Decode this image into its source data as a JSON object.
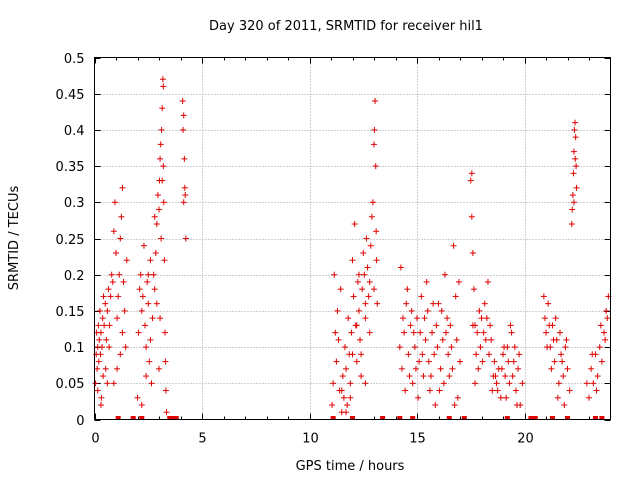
{
  "chart_data": {
    "type": "scatter",
    "title": "Day 320 of 2011, SRMTID for receiver hil1",
    "xlabel": "GPS time / hours",
    "ylabel": "SRMTID / TECUs",
    "xlim": [
      0,
      24
    ],
    "ylim": [
      0,
      0.5
    ],
    "grid": true,
    "marker": "+",
    "color": "#e00000",
    "x_ticks": [
      {
        "value": 0,
        "label": "0"
      },
      {
        "value": 5,
        "label": "5"
      },
      {
        "value": 10,
        "label": "10"
      },
      {
        "value": 15,
        "label": "15"
      },
      {
        "value": 20,
        "label": "20"
      }
    ],
    "y_ticks": [
      {
        "value": 0,
        "label": "0"
      },
      {
        "value": 0.05,
        "label": "0.05"
      },
      {
        "value": 0.1,
        "label": "0.1"
      },
      {
        "value": 0.15,
        "label": "0.15"
      },
      {
        "value": 0.2,
        "label": "0.2"
      },
      {
        "value": 0.25,
        "label": "0.25"
      },
      {
        "value": 0.3,
        "label": "0.3"
      },
      {
        "value": 0.35,
        "label": "0.35"
      },
      {
        "value": 0.4,
        "label": "0.4"
      },
      {
        "value": 0.45,
        "label": "0.45"
      },
      {
        "value": 0.5,
        "label": "0.5"
      }
    ],
    "points": [
      [
        0.05,
        0.05
      ],
      [
        0.08,
        0.09
      ],
      [
        0.1,
        0.12
      ],
      [
        0.12,
        0.07
      ],
      [
        0.15,
        0.1
      ],
      [
        0.18,
        0.13
      ],
      [
        0.2,
        0.08
      ],
      [
        0.22,
        0.11
      ],
      [
        0.25,
        0.15
      ],
      [
        0.28,
        0.09
      ],
      [
        0.3,
        0.12
      ],
      [
        0.32,
        0.03
      ],
      [
        0.35,
        0.1
      ],
      [
        0.38,
        0.14
      ],
      [
        0.4,
        0.06
      ],
      [
        0.45,
        0.13
      ],
      [
        0.5,
        0.16
      ],
      [
        0.55,
        0.11
      ],
      [
        0.6,
        0.15
      ],
      [
        0.65,
        0.18
      ],
      [
        0.7,
        0.13
      ],
      [
        0.75,
        0.17
      ],
      [
        0.8,
        0.2
      ],
      [
        0.85,
        0.19
      ],
      [
        0.9,
        0.26
      ],
      [
        0.95,
        0.3
      ],
      [
        1.0,
        0.23
      ],
      [
        1.05,
        0.14
      ],
      [
        1.1,
        0.17
      ],
      [
        1.15,
        0.2
      ],
      [
        1.2,
        0.25
      ],
      [
        1.25,
        0.28
      ],
      [
        1.3,
        0.32
      ],
      [
        1.35,
        0.19
      ],
      [
        1.4,
        0.15
      ],
      [
        1.45,
        0.1
      ],
      [
        1.5,
        0.22
      ],
      [
        0.6,
        0.05
      ],
      [
        0.15,
        0.04
      ],
      [
        0.3,
        0.02
      ],
      [
        0.42,
        0.17
      ],
      [
        0.52,
        0.07
      ],
      [
        0.68,
        0.1
      ],
      [
        0.9,
        0.05
      ],
      [
        1.05,
        0.07
      ],
      [
        1.2,
        0.09
      ],
      [
        1.3,
        0.12
      ],
      [
        2.0,
        0.03
      ],
      [
        2.05,
        0.12
      ],
      [
        2.1,
        0.18
      ],
      [
        2.15,
        0.2
      ],
      [
        2.2,
        0.15
      ],
      [
        2.25,
        0.17
      ],
      [
        2.3,
        0.24
      ],
      [
        2.35,
        0.13
      ],
      [
        2.4,
        0.1
      ],
      [
        2.45,
        0.19
      ],
      [
        2.5,
        0.16
      ],
      [
        2.55,
        0.08
      ],
      [
        2.6,
        0.11
      ],
      [
        2.65,
        0.05
      ],
      [
        2.7,
        0.14
      ],
      [
        2.75,
        0.2
      ],
      [
        2.8,
        0.18
      ],
      [
        2.85,
        0.23
      ],
      [
        2.9,
        0.27
      ],
      [
        2.95,
        0.31
      ],
      [
        3.0,
        0.29
      ],
      [
        3.02,
        0.33
      ],
      [
        3.05,
        0.36
      ],
      [
        3.08,
        0.38
      ],
      [
        3.1,
        0.25
      ],
      [
        3.12,
        0.4
      ],
      [
        3.15,
        0.43
      ],
      [
        3.18,
        0.47
      ],
      [
        3.2,
        0.35
      ],
      [
        3.22,
        0.3
      ],
      [
        3.25,
        0.22
      ],
      [
        3.28,
        0.12
      ],
      [
        3.3,
        0.08
      ],
      [
        3.32,
        0.04
      ],
      [
        3.35,
        0.01
      ],
      [
        2.2,
        0.02
      ],
      [
        2.4,
        0.06
      ],
      [
        2.5,
        0.2
      ],
      [
        2.6,
        0.22
      ],
      [
        2.8,
        0.28
      ],
      [
        2.9,
        0.16
      ],
      [
        3.0,
        0.07
      ],
      [
        3.05,
        0.14
      ],
      [
        3.15,
        0.33
      ],
      [
        3.2,
        0.46
      ],
      [
        4.1,
        0.44
      ],
      [
        4.12,
        0.4
      ],
      [
        4.15,
        0.42
      ],
      [
        4.18,
        0.36
      ],
      [
        4.2,
        0.32
      ],
      [
        4.22,
        0.31
      ],
      [
        4.25,
        0.25
      ],
      [
        4.15,
        0.3
      ],
      [
        11.05,
        0.02
      ],
      [
        11.1,
        0.05
      ],
      [
        11.15,
        0.2
      ],
      [
        11.2,
        0.12
      ],
      [
        11.25,
        0.08
      ],
      [
        11.3,
        0.15
      ],
      [
        11.35,
        0.11
      ],
      [
        11.4,
        0.04
      ],
      [
        11.45,
        0.18
      ],
      [
        11.5,
        0.01
      ],
      [
        11.55,
        0.06
      ],
      [
        11.6,
        0.03
      ],
      [
        11.65,
        0.1
      ],
      [
        11.7,
        0.07
      ],
      [
        11.75,
        0.02
      ],
      [
        11.8,
        0.14
      ],
      [
        11.85,
        0.09
      ],
      [
        11.9,
        0.05
      ],
      [
        11.95,
        0.12
      ],
      [
        12.0,
        0.22
      ],
      [
        12.05,
        0.17
      ],
      [
        12.1,
        0.27
      ],
      [
        12.15,
        0.13
      ],
      [
        12.2,
        0.08
      ],
      [
        12.25,
        0.19
      ],
      [
        12.3,
        0.15
      ],
      [
        12.35,
        0.11
      ],
      [
        12.4,
        0.06
      ],
      [
        12.45,
        0.18
      ],
      [
        12.5,
        0.23
      ],
      [
        12.55,
        0.2
      ],
      [
        12.6,
        0.14
      ],
      [
        12.65,
        0.25
      ],
      [
        12.7,
        0.21
      ],
      [
        12.75,
        0.17
      ],
      [
        12.8,
        0.19
      ],
      [
        12.85,
        0.24
      ],
      [
        12.9,
        0.28
      ],
      [
        12.95,
        0.3
      ],
      [
        13.0,
        0.38
      ],
      [
        13.02,
        0.4
      ],
      [
        13.05,
        0.44
      ],
      [
        13.08,
        0.35
      ],
      [
        13.1,
        0.26
      ],
      [
        13.12,
        0.22
      ],
      [
        13.15,
        0.16
      ],
      [
        11.5,
        0.04
      ],
      [
        11.7,
        0.01
      ],
      [
        11.9,
        0.03
      ],
      [
        12.0,
        0.09
      ],
      [
        12.2,
        0.13
      ],
      [
        12.4,
        0.09
      ],
      [
        12.6,
        0.05
      ],
      [
        12.8,
        0.12
      ],
      [
        13.0,
        0.18
      ],
      [
        12.3,
        0.2
      ],
      [
        12.6,
        0.16
      ],
      [
        14.2,
        0.1
      ],
      [
        14.3,
        0.07
      ],
      [
        14.4,
        0.12
      ],
      [
        14.5,
        0.16
      ],
      [
        14.6,
        0.09
      ],
      [
        14.7,
        0.13
      ],
      [
        14.8,
        0.05
      ],
      [
        14.9,
        0.1
      ],
      [
        15.0,
        0.14
      ],
      [
        15.1,
        0.08
      ],
      [
        15.2,
        0.17
      ],
      [
        15.3,
        0.06
      ],
      [
        15.4,
        0.11
      ],
      [
        15.5,
        0.15
      ],
      [
        15.6,
        0.04
      ],
      [
        15.7,
        0.12
      ],
      [
        15.8,
        0.09
      ],
      [
        15.9,
        0.13
      ],
      [
        16.0,
        0.16
      ],
      [
        16.1,
        0.07
      ],
      [
        16.2,
        0.11
      ],
      [
        16.3,
        0.2
      ],
      [
        16.4,
        0.14
      ],
      [
        16.5,
        0.06
      ],
      [
        16.6,
        0.1
      ],
      [
        16.7,
        0.24
      ],
      [
        16.8,
        0.17
      ],
      [
        16.9,
        0.03
      ],
      [
        17.0,
        0.08
      ],
      [
        14.25,
        0.21
      ],
      [
        14.35,
        0.14
      ],
      [
        14.45,
        0.04
      ],
      [
        14.55,
        0.18
      ],
      [
        14.65,
        0.06
      ],
      [
        14.75,
        0.15
      ],
      [
        14.85,
        0.12
      ],
      [
        14.95,
        0.07
      ],
      [
        15.05,
        0.03
      ],
      [
        15.15,
        0.12
      ],
      [
        15.25,
        0.09
      ],
      [
        15.35,
        0.14
      ],
      [
        15.45,
        0.19
      ],
      [
        15.55,
        0.08
      ],
      [
        15.65,
        0.06
      ],
      [
        15.75,
        0.16
      ],
      [
        15.85,
        0.02
      ],
      [
        15.95,
        0.1
      ],
      [
        16.05,
        0.04
      ],
      [
        16.15,
        0.15
      ],
      [
        16.25,
        0.05
      ],
      [
        16.35,
        0.12
      ],
      [
        16.45,
        0.09
      ],
      [
        16.55,
        0.13
      ],
      [
        16.65,
        0.07
      ],
      [
        16.75,
        0.02
      ],
      [
        16.85,
        0.11
      ],
      [
        16.95,
        0.19
      ],
      [
        17.5,
        0.33
      ],
      [
        17.55,
        0.28
      ],
      [
        17.6,
        0.23
      ],
      [
        17.65,
        0.18
      ],
      [
        17.7,
        0.13
      ],
      [
        17.75,
        0.09
      ],
      [
        17.8,
        0.12
      ],
      [
        17.85,
        0.07
      ],
      [
        17.9,
        0.15
      ],
      [
        17.95,
        0.1
      ],
      [
        18.0,
        0.14
      ],
      [
        18.05,
        0.08
      ],
      [
        18.1,
        0.12
      ],
      [
        18.15,
        0.16
      ],
      [
        18.2,
        0.11
      ],
      [
        18.3,
        0.19
      ],
      [
        18.35,
        0.09
      ],
      [
        18.4,
        0.13
      ],
      [
        18.5,
        0.04
      ],
      [
        18.55,
        0.06
      ],
      [
        18.6,
        0.08
      ],
      [
        18.7,
        0.05
      ],
      [
        18.8,
        0.07
      ],
      [
        18.9,
        0.03
      ],
      [
        19.0,
        0.09
      ],
      [
        19.1,
        0.06
      ],
      [
        19.2,
        0.1
      ],
      [
        19.3,
        0.05
      ],
      [
        19.4,
        0.12
      ],
      [
        19.5,
        0.08
      ],
      [
        19.6,
        0.04
      ],
      [
        19.7,
        0.07
      ],
      [
        19.8,
        0.02
      ],
      [
        19.9,
        0.05
      ],
      [
        17.55,
        0.34
      ],
      [
        17.6,
        0.13
      ],
      [
        17.7,
        0.05
      ],
      [
        18.25,
        0.14
      ],
      [
        18.45,
        0.11
      ],
      [
        18.65,
        0.06
      ],
      [
        18.75,
        0.04
      ],
      [
        18.95,
        0.07
      ],
      [
        19.05,
        0.1
      ],
      [
        19.15,
        0.03
      ],
      [
        19.25,
        0.08
      ],
      [
        19.35,
        0.13
      ],
      [
        19.45,
        0.06
      ],
      [
        19.55,
        0.1
      ],
      [
        19.65,
        0.02
      ],
      [
        19.75,
        0.09
      ],
      [
        20.9,
        0.17
      ],
      [
        20.95,
        0.14
      ],
      [
        21.0,
        0.12
      ],
      [
        21.1,
        0.16
      ],
      [
        21.2,
        0.1
      ],
      [
        21.3,
        0.13
      ],
      [
        21.4,
        0.08
      ],
      [
        21.5,
        0.11
      ],
      [
        21.6,
        0.05
      ],
      [
        21.7,
        0.09
      ],
      [
        21.8,
        0.06
      ],
      [
        21.9,
        0.1
      ],
      [
        22.0,
        0.07
      ],
      [
        22.1,
        0.04
      ],
      [
        21.05,
        0.1
      ],
      [
        21.15,
        0.13
      ],
      [
        21.25,
        0.07
      ],
      [
        21.35,
        0.11
      ],
      [
        21.45,
        0.14
      ],
      [
        21.55,
        0.03
      ],
      [
        21.65,
        0.12
      ],
      [
        21.75,
        0.08
      ],
      [
        21.85,
        0.02
      ],
      [
        21.95,
        0.11
      ],
      [
        22.2,
        0.27
      ],
      [
        22.22,
        0.29
      ],
      [
        22.25,
        0.31
      ],
      [
        22.28,
        0.34
      ],
      [
        22.3,
        0.37
      ],
      [
        22.32,
        0.4
      ],
      [
        22.35,
        0.41
      ],
      [
        22.38,
        0.39
      ],
      [
        22.4,
        0.35
      ],
      [
        22.42,
        0.32
      ],
      [
        22.3,
        0.3
      ],
      [
        22.36,
        0.36
      ],
      [
        22.9,
        0.05
      ],
      [
        23.0,
        0.03
      ],
      [
        23.1,
        0.07
      ],
      [
        23.2,
        0.05
      ],
      [
        23.3,
        0.09
      ],
      [
        23.4,
        0.06
      ],
      [
        23.5,
        0.1
      ],
      [
        23.6,
        0.08
      ],
      [
        23.7,
        0.12
      ],
      [
        23.8,
        0.15
      ],
      [
        23.9,
        0.17
      ],
      [
        23.15,
        0.09
      ],
      [
        23.35,
        0.04
      ],
      [
        23.55,
        0.13
      ],
      [
        23.75,
        0.11
      ],
      [
        23.85,
        0.14
      ]
    ],
    "zero_points_x": [
      1.1,
      1.8,
      2.2,
      3.5,
      3.6,
      3.8,
      11.1,
      12.0,
      13.4,
      14.2,
      14.8,
      16.5,
      17.2,
      19.2,
      20.3,
      20.5,
      21.3,
      22.0,
      23.3,
      23.6
    ]
  }
}
